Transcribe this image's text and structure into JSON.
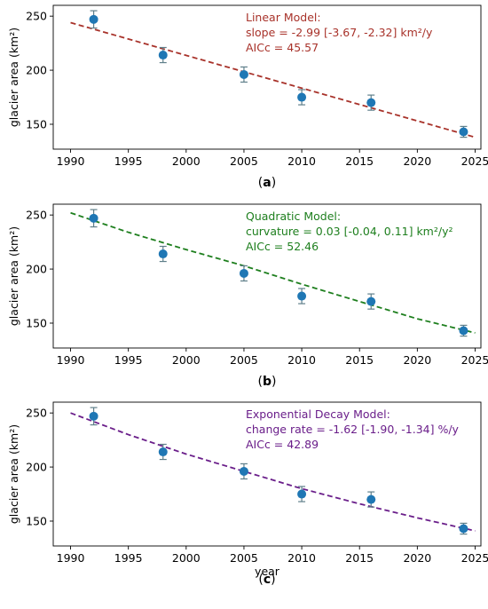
{
  "chart_data": [
    {
      "type": "scatter",
      "panel_label": "(a)",
      "panel_letter": "a",
      "xlabel": "",
      "ylabel": "glacier area (km²)",
      "xlim": [
        1988.5,
        2025.5
      ],
      "ylim": [
        127,
        260
      ],
      "xticks": [
        1990,
        1995,
        2000,
        2005,
        2010,
        2015,
        2020,
        2025
      ],
      "yticks": [
        150,
        200,
        250
      ],
      "x": [
        1992,
        1998,
        2005,
        2010,
        2016,
        2024
      ],
      "y": [
        247,
        214,
        196,
        175,
        170,
        143
      ],
      "err": [
        8,
        7,
        7,
        7,
        7,
        5
      ],
      "fit": {
        "model": "linear",
        "color": "#a8322a",
        "x": [
          1990,
          2025
        ],
        "y": [
          244,
          138
        ]
      },
      "annotation": {
        "color": "#a8322a",
        "lines": [
          "Linear Model:",
          "slope = -2.99 [-3.67, -2.32] km²/y",
          "AICc = 45.57"
        ]
      }
    },
    {
      "type": "scatter",
      "panel_label": "(b)",
      "panel_letter": "b",
      "xlabel": "",
      "ylabel": "glacier area (km²)",
      "xlim": [
        1988.5,
        2025.5
      ],
      "ylim": [
        127,
        260
      ],
      "xticks": [
        1990,
        1995,
        2000,
        2005,
        2010,
        2015,
        2020,
        2025
      ],
      "yticks": [
        150,
        200,
        250
      ],
      "x": [
        1992,
        1998,
        2005,
        2010,
        2016,
        2024
      ],
      "y": [
        247,
        214,
        196,
        175,
        170,
        143
      ],
      "err": [
        8,
        7,
        7,
        7,
        7,
        5
      ],
      "fit": {
        "model": "quadratic",
        "color": "#1e7f1e",
        "x": [
          1990,
          1995,
          2000,
          2005,
          2010,
          2015,
          2020,
          2025
        ],
        "y": [
          252,
          234,
          218,
          203,
          186,
          170,
          154,
          141
        ]
      },
      "annotation": {
        "color": "#1e7f1e",
        "lines": [
          "Quadratic Model:",
          "curvature = 0.03 [-0.04, 0.11] km²/y²",
          "AICc = 52.46"
        ]
      }
    },
    {
      "type": "scatter",
      "panel_label": "(c)",
      "panel_letter": "c",
      "xlabel": "year",
      "ylabel": "glacier area (km²)",
      "xlim": [
        1988.5,
        2025.5
      ],
      "ylim": [
        127,
        260
      ],
      "xticks": [
        1990,
        1995,
        2000,
        2005,
        2010,
        2015,
        2020,
        2025
      ],
      "yticks": [
        150,
        200,
        250
      ],
      "x": [
        1992,
        1998,
        2005,
        2010,
        2016,
        2024
      ],
      "y": [
        247,
        214,
        196,
        175,
        170,
        143
      ],
      "err": [
        8,
        7,
        7,
        7,
        7,
        5
      ],
      "fit": {
        "model": "exponential",
        "color": "#6a1e8a",
        "x": [
          1990,
          1995,
          2000,
          2005,
          2010,
          2015,
          2020,
          2025
        ],
        "y": [
          250,
          230,
          212,
          196,
          180,
          166,
          153,
          141
        ]
      },
      "annotation": {
        "color": "#6a1e8a",
        "lines": [
          "Exponential Decay Model:",
          "change rate = -1.62 [-1.90, -1.34] %/y",
          "AICc = 42.89"
        ]
      }
    }
  ],
  "colors": {
    "points": "#1f77b4",
    "errorbars": "#5f7f8a"
  }
}
